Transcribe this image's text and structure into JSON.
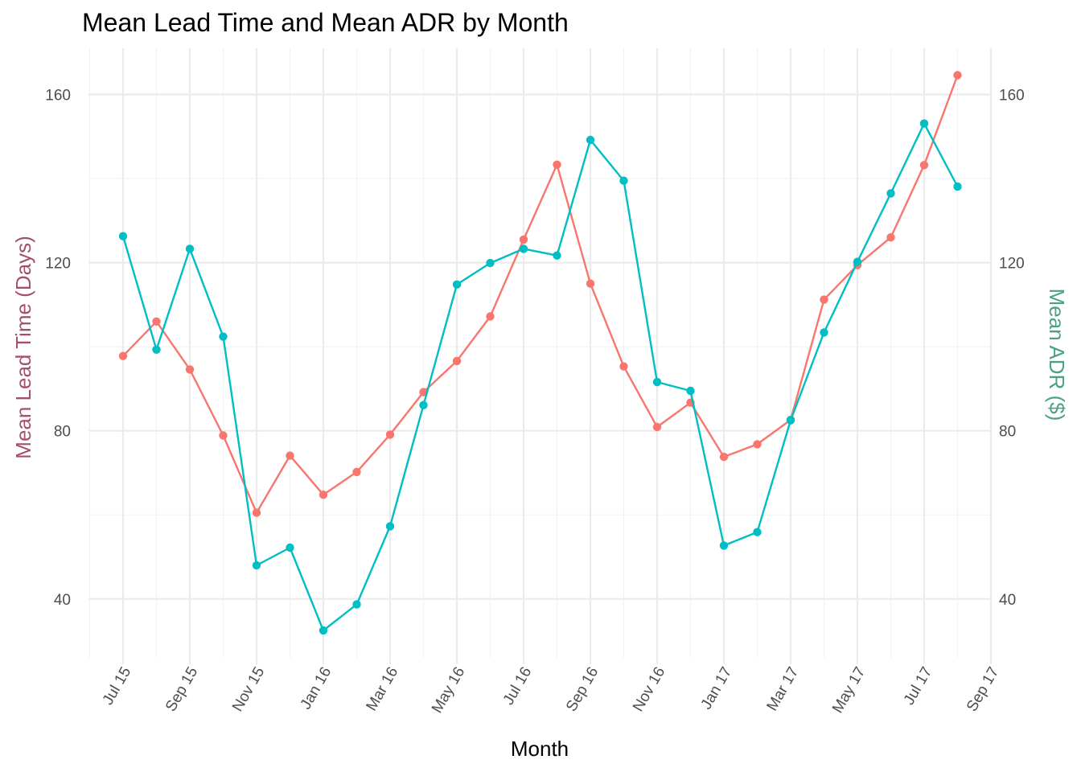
{
  "chart_data": {
    "type": "line",
    "title": "Mean Lead Time and Mean ADR by Month",
    "xlabel": "Month",
    "ylabel_left": "Mean Lead Time (Days)",
    "ylabel_right": "Mean ADR ($)",
    "ylim": [
      26,
      171
    ],
    "y_ticks": [
      40,
      80,
      120,
      160
    ],
    "x_ticks": [
      "Jul 15",
      "Sep 15",
      "Nov 15",
      "Jan 16",
      "Mar 16",
      "May 16",
      "Jul 16",
      "Sep 16",
      "Nov 16",
      "Jan 17",
      "Mar 17",
      "May 17",
      "Jul 17",
      "Sep 17"
    ],
    "x": [
      "2015-07",
      "2015-08",
      "2015-09",
      "2015-10",
      "2015-11",
      "2015-12",
      "2016-01",
      "2016-02",
      "2016-03",
      "2016-04",
      "2016-05",
      "2016-06",
      "2016-07",
      "2016-08",
      "2016-09",
      "2016-10",
      "2016-11",
      "2016-12",
      "2017-01",
      "2017-02",
      "2017-03",
      "2017-04",
      "2017-05",
      "2017-06",
      "2017-07",
      "2017-08"
    ],
    "grid": true,
    "legend": "none",
    "series": [
      {
        "color": "#F8766D",
        "values": [
          97.8,
          106.0,
          94.6,
          78.9,
          60.5,
          74.1,
          64.8,
          70.2,
          79.1,
          89.2,
          96.6,
          107.2,
          125.5,
          143.3,
          115.0,
          95.3,
          80.9,
          86.7,
          73.8,
          76.8,
          82.6,
          111.2,
          119.4,
          126.0,
          143.2,
          164.6
        ]
      },
      {
        "color": "#00BFC4",
        "values": [
          126.3,
          99.3,
          123.3,
          102.4,
          48.0,
          52.2,
          32.5,
          38.7,
          57.3,
          86.1,
          114.8,
          119.9,
          123.3,
          121.7,
          149.2,
          139.5,
          91.6,
          89.5,
          52.7,
          55.9,
          82.5,
          103.4,
          120.2,
          136.5,
          153.1,
          138.1
        ]
      }
    ],
    "colors": {
      "left_axis_title": "#A5506B",
      "right_axis_title": "#4AA37F"
    }
  }
}
